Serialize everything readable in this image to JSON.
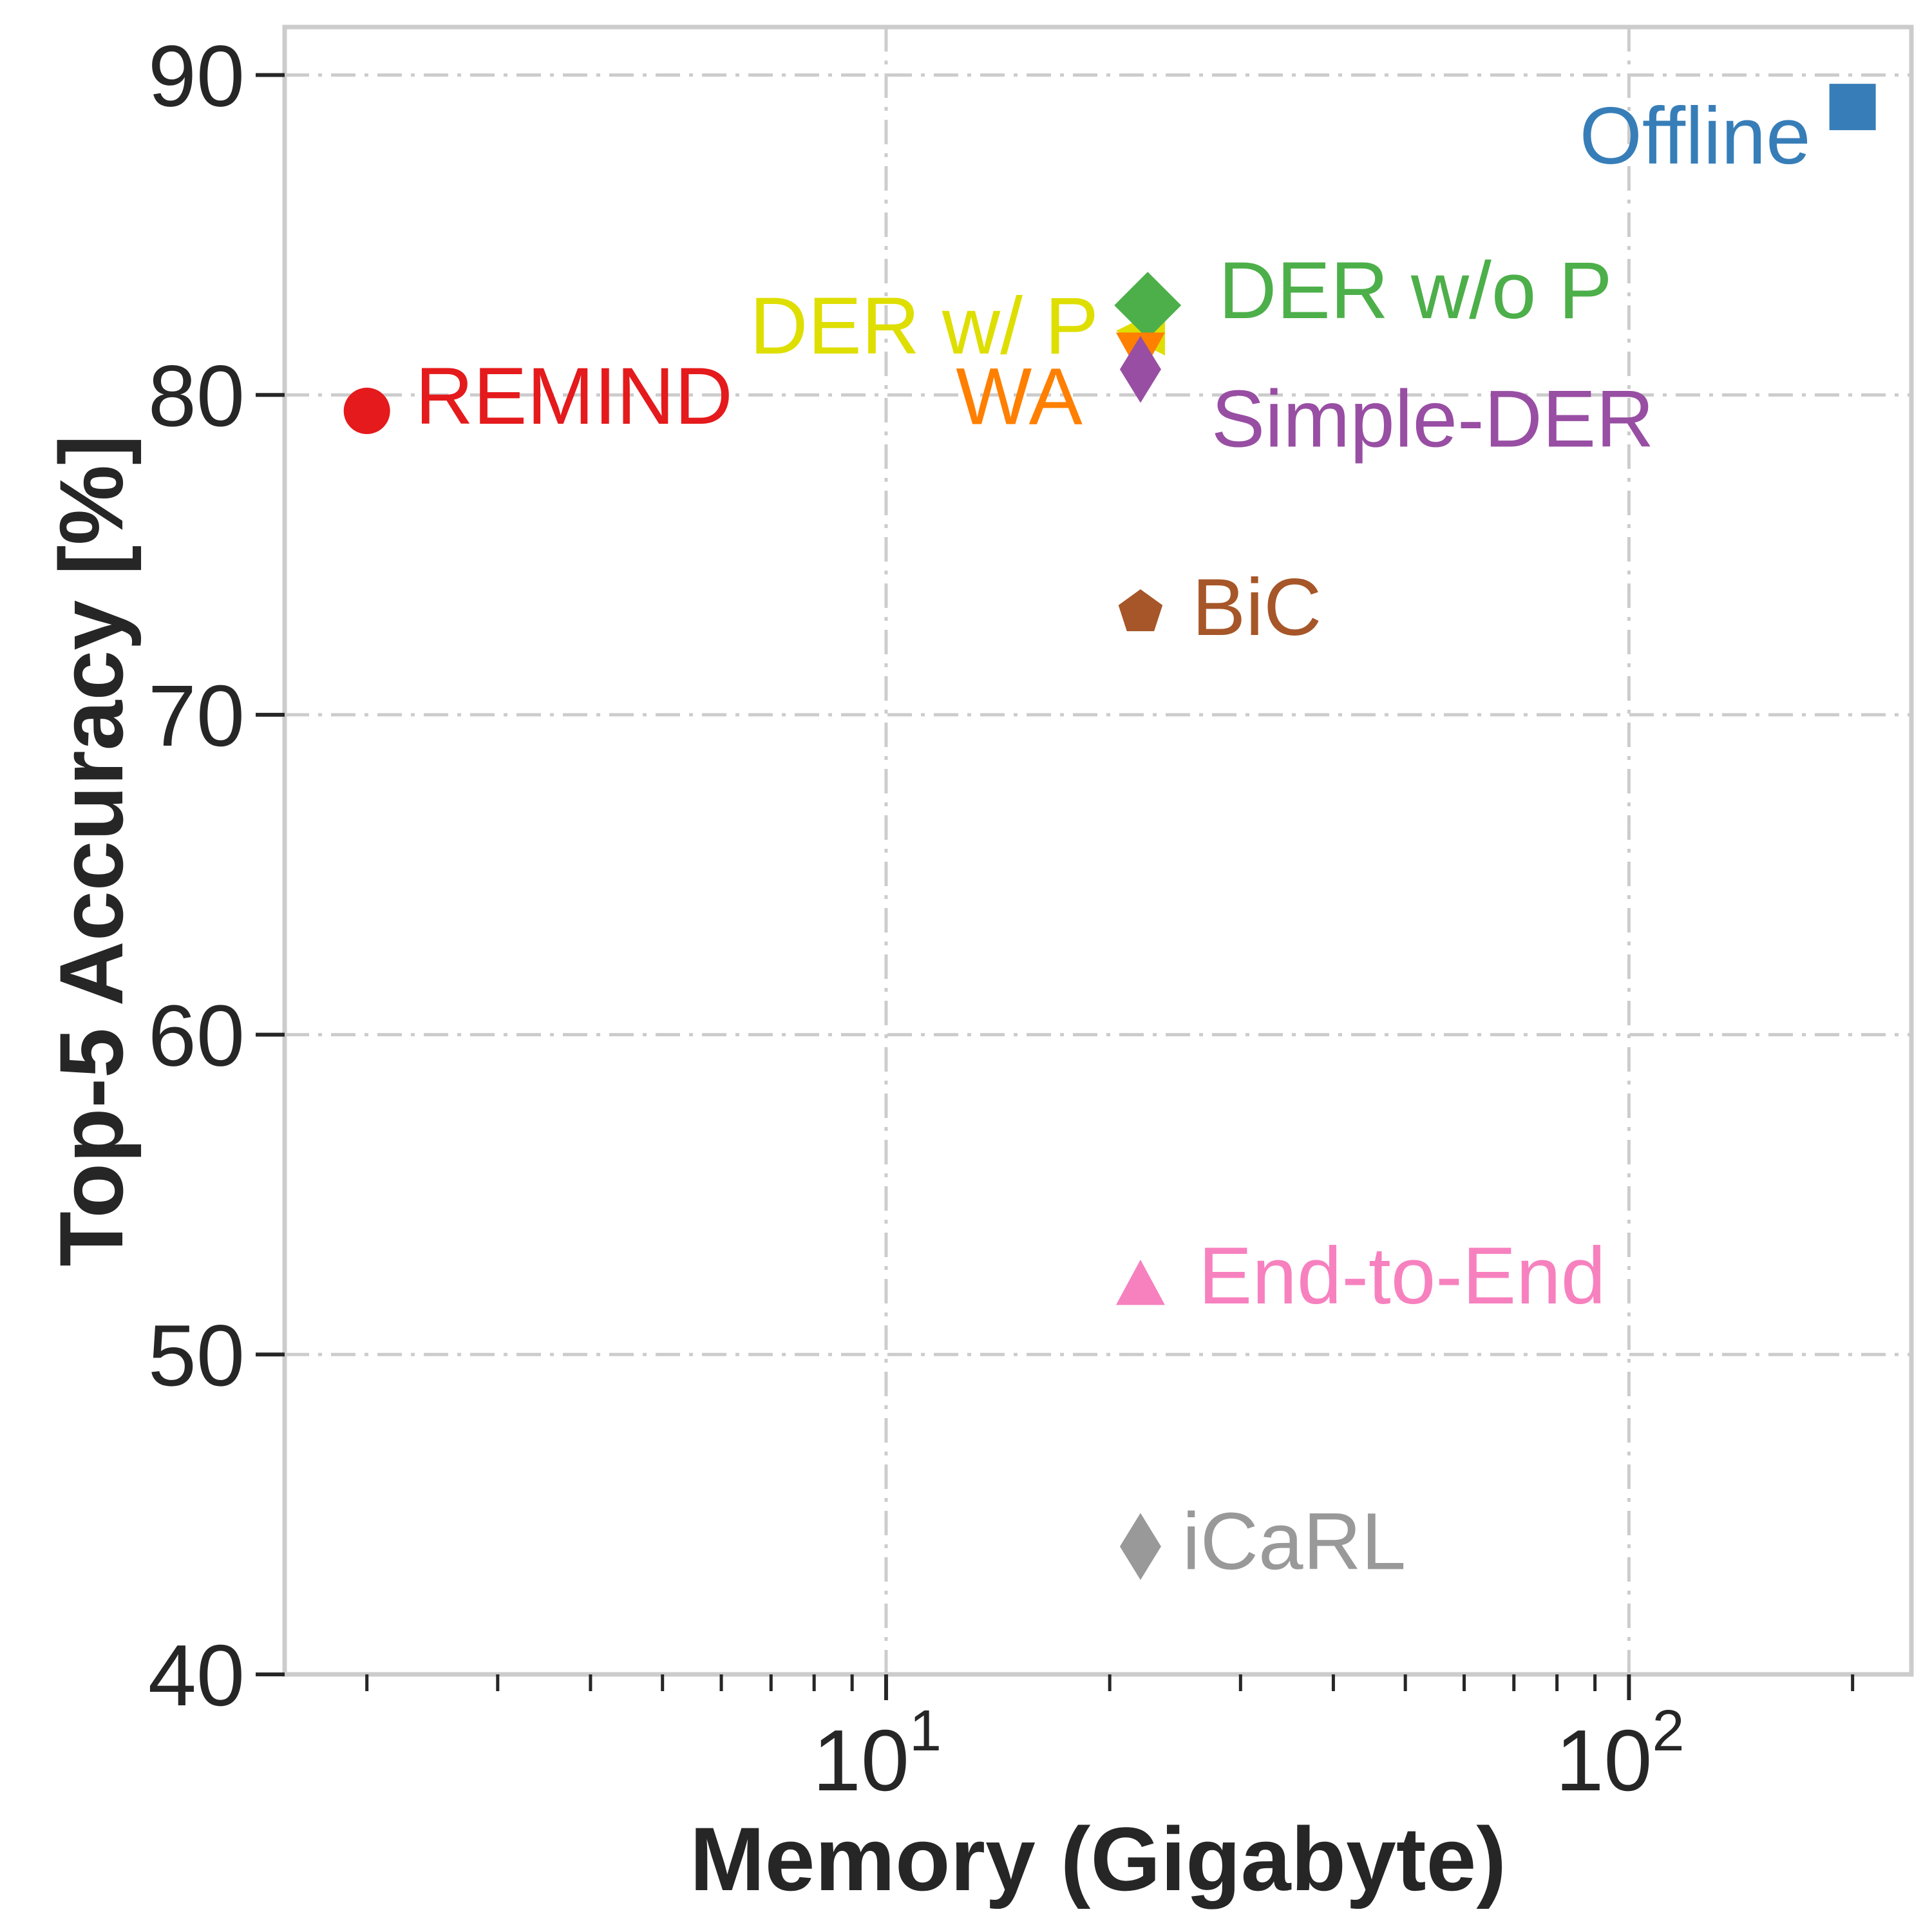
{
  "chart_data": {
    "type": "scatter",
    "title": "",
    "xlabel": "Memory (Gigabyte)",
    "ylabel": "Top-5 Accuracy [%]",
    "xscale": "log",
    "xlim": [
      1.55,
      240
    ],
    "ylim": [
      40,
      91.5
    ],
    "grid": true,
    "x_ticks": [
      {
        "value": 10,
        "base": "10",
        "exp": "1"
      },
      {
        "value": 100,
        "base": "10",
        "exp": "2"
      }
    ],
    "y_ticks": [
      {
        "value": 40,
        "label": "40"
      },
      {
        "value": 50,
        "label": "50"
      },
      {
        "value": 60,
        "label": "60"
      },
      {
        "value": 70,
        "label": "70"
      },
      {
        "value": 80,
        "label": "80"
      },
      {
        "value": 90,
        "label": "90"
      }
    ],
    "series": [
      {
        "name": "REMIND",
        "label": "REMIND",
        "x": 2.0,
        "y": 79.5,
        "marker": "circle",
        "color": "#e41a1c"
      },
      {
        "name": "DER w/ P",
        "label": "DER w/ P",
        "x": 22.0,
        "y": 82.0,
        "marker": "triangle-left",
        "color": "#dede00"
      },
      {
        "name": "DER w/o P",
        "label": "DER w/o P",
        "x": 22.5,
        "y": 82.8,
        "marker": "diamond",
        "color": "#4daf4a"
      },
      {
        "name": "WA",
        "label": "WA",
        "x": 22.0,
        "y": 81.3,
        "marker": "triangle-down",
        "color": "#ff7f00"
      },
      {
        "name": "Simple-DER",
        "label": "Simple-DER",
        "x": 22.0,
        "y": 80.8,
        "marker": "thin-diamond",
        "color": "#984ea3"
      },
      {
        "name": "BiC",
        "label": "BiC",
        "x": 22.0,
        "y": 73.2,
        "marker": "pentagon",
        "color": "#a65628"
      },
      {
        "name": "End-to-End",
        "label": "End-to-End",
        "x": 22.0,
        "y": 52.2,
        "marker": "triangle-up",
        "color": "#f781bf"
      },
      {
        "name": "iCaRL",
        "label": "iCaRL",
        "x": 22.0,
        "y": 44.0,
        "marker": "thin-diamond",
        "color": "#999999"
      },
      {
        "name": "Offline",
        "label": "Offline",
        "x": 200.0,
        "y": 89.0,
        "marker": "square",
        "color": "#377eb8"
      }
    ]
  }
}
